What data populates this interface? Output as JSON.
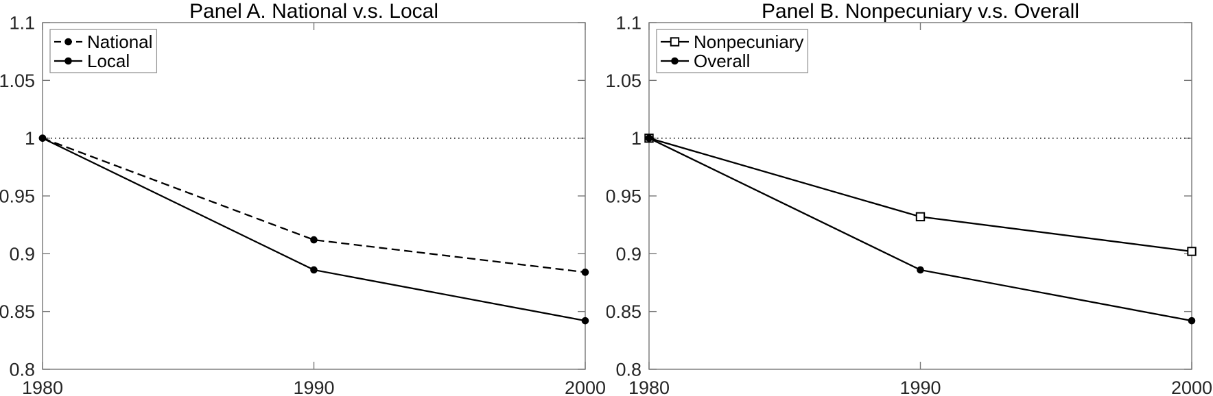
{
  "page": {
    "background": "#ffffff",
    "description": "Two-panel line chart figure"
  },
  "palette": {
    "plot_line": "#000000",
    "axis_box": "#767676",
    "tick_label_color": "#262626",
    "title_color": "#000000",
    "legend_border": "#8c8c8c",
    "legend_background": "#ffffff",
    "legend_text": "#000000",
    "reference_line_color": "#000000",
    "marker_fill": "#000000",
    "open_marker_fill": "#ffffff"
  },
  "chart_data": [
    {
      "type": "line",
      "title": "Panel A. National v.s. Local",
      "x": [
        1980,
        1990,
        2000
      ],
      "xlim": [
        1980,
        2000
      ],
      "ylim": [
        0.8,
        1.1
      ],
      "xtick_labels": [
        "1980",
        "1990",
        "2000"
      ],
      "ytick_values": [
        0.8,
        0.85,
        0.9,
        0.95,
        1,
        1.05,
        1.1
      ],
      "ytick_labels": [
        "0.8",
        "0.85",
        "0.9",
        "0.95",
        "1",
        "1.05",
        "1.1"
      ],
      "grid": "off",
      "box": "on",
      "tick_direction": "in",
      "reference_line": {
        "y": 1,
        "style": "dotted"
      },
      "legend_position": "top-left",
      "series": [
        {
          "name": "National",
          "values": [
            1.0,
            0.912,
            0.884
          ],
          "line_style": "dashed",
          "marker": "filled-circle"
        },
        {
          "name": "Local",
          "values": [
            1.0,
            0.886,
            0.842
          ],
          "line_style": "solid",
          "marker": "filled-circle"
        }
      ]
    },
    {
      "type": "line",
      "title": "Panel B. Nonpecuniary v.s. Overall",
      "x": [
        1980,
        1990,
        2000
      ],
      "xlim": [
        1980,
        2000
      ],
      "ylim": [
        0.8,
        1.1
      ],
      "xtick_labels": [
        "1980",
        "1990",
        "2000"
      ],
      "ytick_values": [
        0.8,
        0.85,
        0.9,
        0.95,
        1,
        1.05,
        1.1
      ],
      "ytick_labels": [
        "0.8",
        "0.85",
        "0.9",
        "0.95",
        "1",
        "1.05",
        "1.1"
      ],
      "grid": "off",
      "box": "on",
      "tick_direction": "in",
      "reference_line": {
        "y": 1,
        "style": "dotted"
      },
      "legend_position": "top-left",
      "series": [
        {
          "name": "Nonpecuniary",
          "values": [
            1.0,
            0.932,
            0.902
          ],
          "line_style": "solid",
          "marker": "open-square"
        },
        {
          "name": "Overall",
          "values": [
            1.0,
            0.886,
            0.842
          ],
          "line_style": "solid",
          "marker": "filled-circle"
        }
      ]
    }
  ]
}
